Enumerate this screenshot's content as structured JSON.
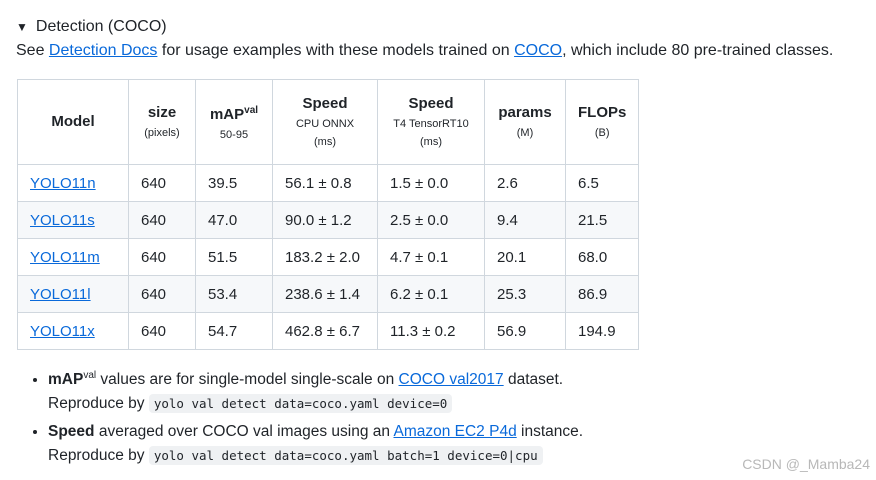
{
  "summary": {
    "triangle": "▼",
    "title": "Detection (COCO)"
  },
  "intro": {
    "before": "See ",
    "docs_link": "Detection Docs",
    "middle": " for usage examples with these models trained on ",
    "coco_link": "COCO",
    "after": ", which include 80 pre-trained classes."
  },
  "table": {
    "headers": [
      {
        "label": "Model",
        "sup": "",
        "sub1": "",
        "sub2": ""
      },
      {
        "label": "size",
        "sup": "",
        "sub1": "(pixels)",
        "sub2": ""
      },
      {
        "label": "mAP",
        "sup": "val",
        "sub1": "50-95",
        "sub2": ""
      },
      {
        "label": "Speed",
        "sup": "",
        "sub1": "CPU ONNX",
        "sub2": "(ms)"
      },
      {
        "label": "Speed",
        "sup": "",
        "sub1": "T4 TensorRT10",
        "sub2": "(ms)"
      },
      {
        "label": "params",
        "sup": "",
        "sub1": "(M)",
        "sub2": ""
      },
      {
        "label": "FLOPs",
        "sup": "",
        "sub1": "(B)",
        "sub2": ""
      }
    ],
    "rows": [
      {
        "model": "YOLO11n",
        "size": "640",
        "map": "39.5",
        "cpu": "56.1 ± 0.8",
        "t4": "1.5 ± 0.0",
        "params": "2.6",
        "flops": "6.5"
      },
      {
        "model": "YOLO11s",
        "size": "640",
        "map": "47.0",
        "cpu": "90.0 ± 1.2",
        "t4": "2.5 ± 0.0",
        "params": "9.4",
        "flops": "21.5"
      },
      {
        "model": "YOLO11m",
        "size": "640",
        "map": "51.5",
        "cpu": "183.2 ± 2.0",
        "t4": "4.7 ± 0.1",
        "params": "20.1",
        "flops": "68.0"
      },
      {
        "model": "YOLO11l",
        "size": "640",
        "map": "53.4",
        "cpu": "238.6 ± 1.4",
        "t4": "6.2 ± 0.1",
        "params": "25.3",
        "flops": "86.9"
      },
      {
        "model": "YOLO11x",
        "size": "640",
        "map": "54.7",
        "cpu": "462.8 ± 6.7",
        "t4": "11.3 ± 0.2",
        "params": "56.9",
        "flops": "194.9"
      }
    ]
  },
  "notes": [
    {
      "bold": "mAP",
      "sup": "val",
      "text": " values are for single-model single-scale on ",
      "link": "COCO val2017",
      "tail": " dataset.",
      "reproduce": "Reproduce by ",
      "code": "yolo val detect data=coco.yaml device=0"
    },
    {
      "bold": "Speed",
      "sup": "",
      "text": " averaged over COCO val images using an ",
      "link": "Amazon EC2 P4d",
      "tail": " instance.",
      "reproduce": "Reproduce by ",
      "code": "yolo val detect data=coco.yaml batch=1 device=0|cpu"
    }
  ],
  "watermark": "CSDN @_Mamba24"
}
